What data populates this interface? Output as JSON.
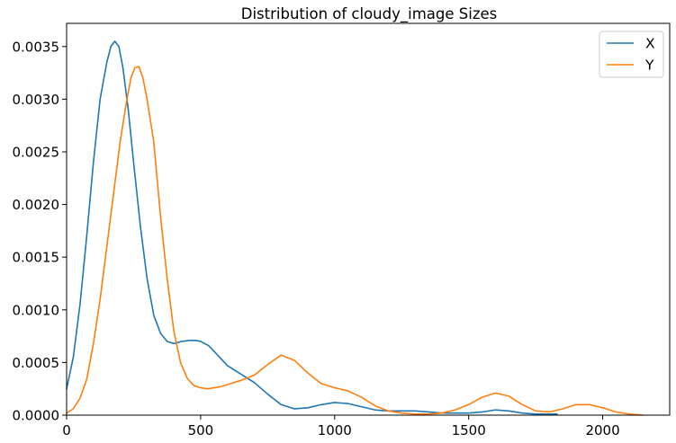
{
  "chart_data": {
    "type": "line",
    "title": "Distribution of cloudy_image Sizes",
    "xlabel": "",
    "ylabel": "",
    "xlim": [
      0,
      2250
    ],
    "ylim": [
      0,
      0.00372
    ],
    "x_ticks": [
      0,
      500,
      1000,
      1500,
      2000
    ],
    "x_tick_labels": [
      "0",
      "500",
      "1000",
      "1500",
      "2000"
    ],
    "y_ticks": [
      0,
      0.0005,
      0.001,
      0.0015,
      0.002,
      0.0025,
      0.003,
      0.0035
    ],
    "y_tick_labels": [
      "0.0000",
      "0.0005",
      "0.0010",
      "0.0015",
      "0.0020",
      "0.0025",
      "0.0030",
      "0.0035"
    ],
    "grid": false,
    "legend_position": "top-right",
    "series": [
      {
        "name": "X",
        "color": "#1f77b4",
        "x": [
          0,
          25,
          50,
          75,
          100,
          125,
          150,
          165,
          180,
          195,
          210,
          230,
          250,
          275,
          300,
          325,
          350,
          375,
          400,
          430,
          460,
          480,
          500,
          530,
          560,
          600,
          650,
          700,
          750,
          800,
          850,
          900,
          950,
          1000,
          1050,
          1100,
          1150,
          1200,
          1250,
          1300,
          1350,
          1400,
          1450,
          1500,
          1550,
          1600,
          1650,
          1700,
          1750,
          1800,
          1830
        ],
        "y": [
          0.00025,
          0.00055,
          0.00105,
          0.0017,
          0.0024,
          0.003,
          0.00335,
          0.0035,
          0.00355,
          0.0035,
          0.0033,
          0.0029,
          0.0024,
          0.0018,
          0.0013,
          0.00095,
          0.00078,
          0.0007,
          0.00068,
          0.0007,
          0.00071,
          0.00071,
          0.0007,
          0.00066,
          0.00058,
          0.00047,
          0.00039,
          0.00031,
          0.0002,
          0.0001,
          6e-05,
          7e-05,
          0.0001,
          0.00012,
          0.00011,
          8e-05,
          5e-05,
          4e-05,
          4e-05,
          4e-05,
          3e-05,
          2e-05,
          2e-05,
          2e-05,
          3e-05,
          5e-05,
          4e-05,
          2e-05,
          1e-05,
          1e-05,
          1e-05
        ]
      },
      {
        "name": "Y",
        "color": "#ff7f0e",
        "x": [
          0,
          25,
          50,
          75,
          100,
          125,
          150,
          175,
          200,
          225,
          240,
          255,
          270,
          285,
          300,
          325,
          350,
          375,
          400,
          425,
          450,
          475,
          500,
          525,
          550,
          575,
          600,
          650,
          700,
          750,
          800,
          850,
          900,
          950,
          1000,
          1050,
          1100,
          1150,
          1200,
          1250,
          1300,
          1350,
          1400,
          1450,
          1500,
          1550,
          1600,
          1650,
          1700,
          1750,
          1800,
          1850,
          1900,
          1950,
          2000,
          2050,
          2100,
          2150
        ],
        "y": [
          2e-05,
          6e-05,
          0.00016,
          0.00034,
          0.00068,
          0.0011,
          0.0016,
          0.0021,
          0.0026,
          0.003,
          0.0032,
          0.0033,
          0.00331,
          0.0032,
          0.003,
          0.0026,
          0.0019,
          0.0013,
          0.0008,
          0.0005,
          0.00035,
          0.00028,
          0.00026,
          0.00025,
          0.00026,
          0.00027,
          0.00029,
          0.00033,
          0.00038,
          0.00048,
          0.00057,
          0.00052,
          0.0004,
          0.0003,
          0.00026,
          0.00023,
          0.00017,
          9e-05,
          4e-05,
          2e-05,
          1e-05,
          1e-05,
          2e-05,
          5e-05,
          0.0001,
          0.00017,
          0.00021,
          0.00018,
          0.0001,
          4e-05,
          3e-05,
          6e-05,
          0.0001,
          0.0001,
          7e-05,
          3e-05,
          1e-05,
          0.0
        ]
      }
    ]
  }
}
